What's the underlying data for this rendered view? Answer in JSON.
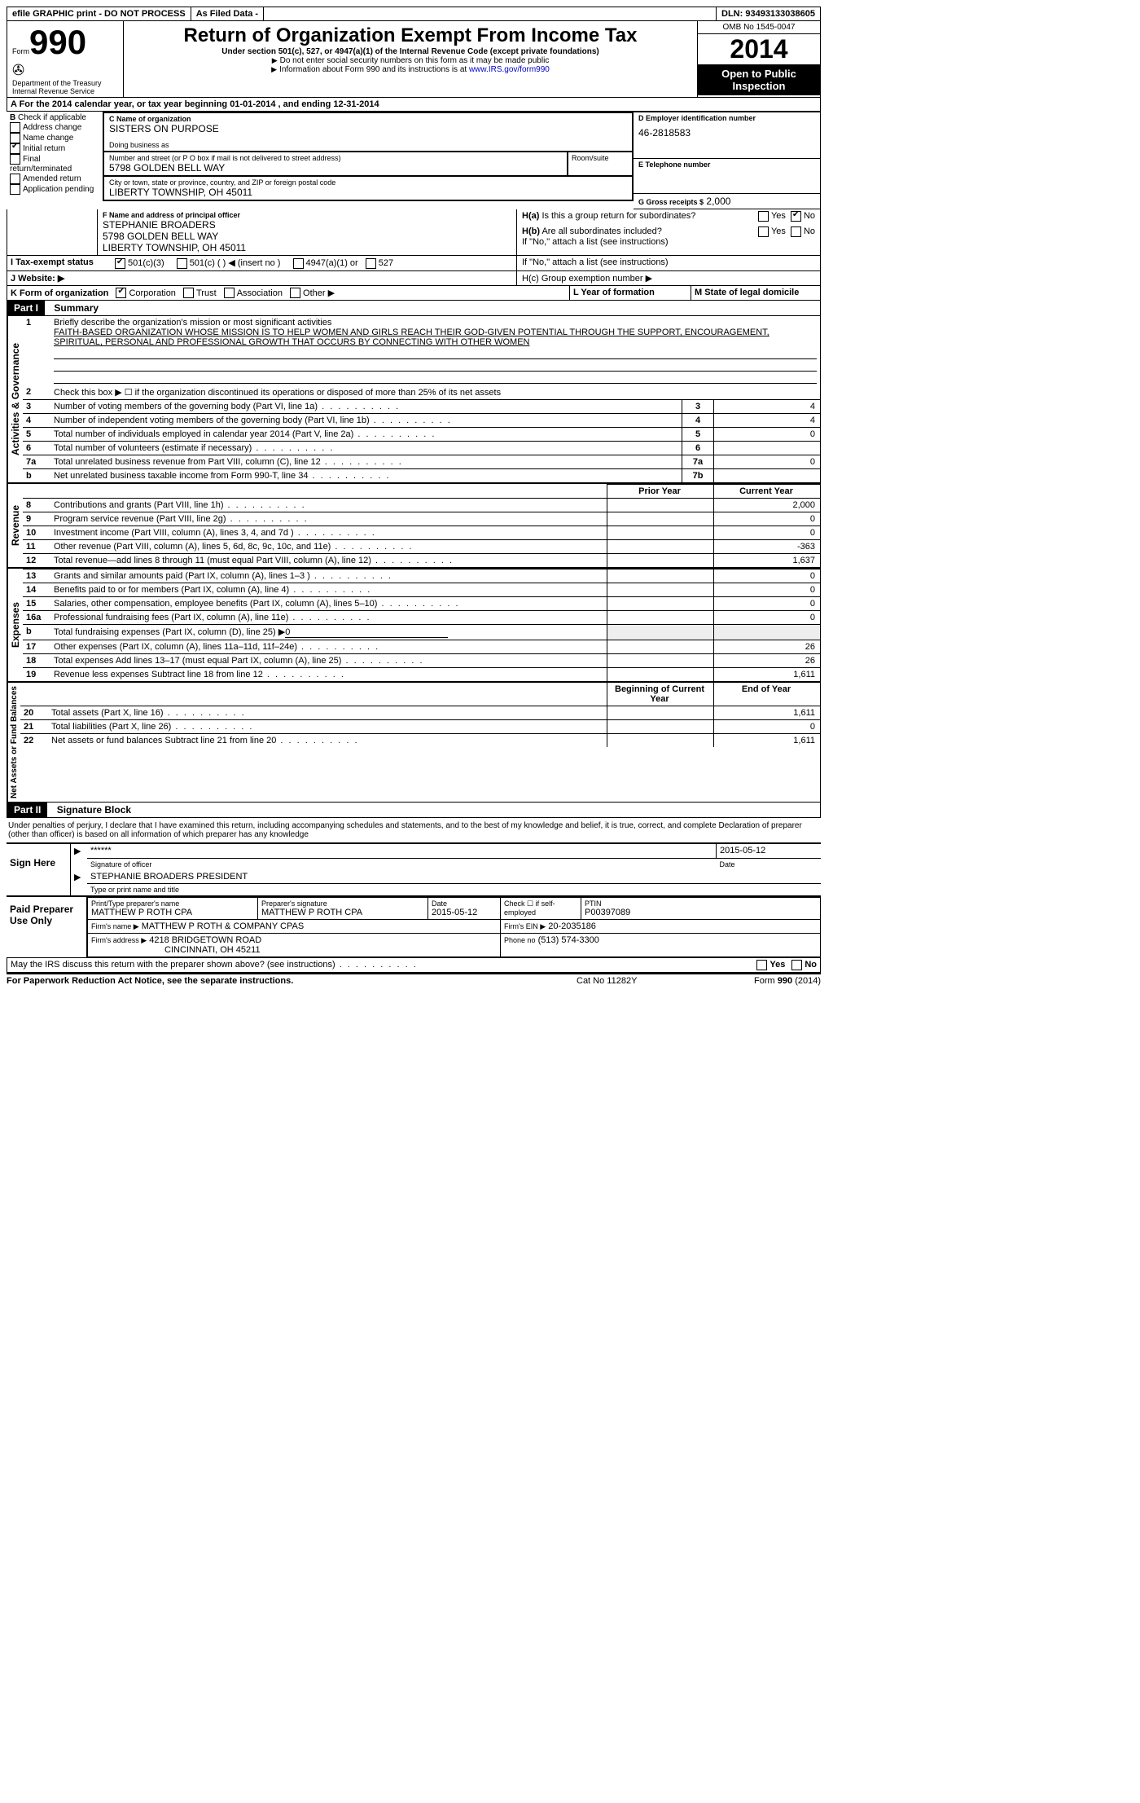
{
  "topbar": {
    "efile": "efile GRAPHIC print - DO NOT PROCESS",
    "asfiled": "As Filed Data -",
    "dln_label": "DLN:",
    "dln": "93493133038605"
  },
  "header": {
    "form_label": "Form",
    "form_number": "990",
    "dept": "Department of the Treasury",
    "irs": "Internal Revenue Service",
    "title": "Return of Organization Exempt From Income Tax",
    "subtitle": "Under section 501(c), 527, or 4947(a)(1) of the Internal Revenue Code (except private foundations)",
    "note1": "Do not enter social security numbers on this form as it may be made public",
    "note2_prefix": "Information about Form 990 and its instructions is at ",
    "note2_link": "www.IRS.gov/form990",
    "omb": "OMB No 1545-0047",
    "year": "2014",
    "open": "Open to Public Inspection"
  },
  "sectionA": {
    "line": "A  For the 2014 calendar year, or tax year beginning 01-01-2014    , and ending 12-31-2014"
  },
  "sectionB": {
    "label": "B",
    "check_label": "Check if applicable",
    "addr_change": "Address change",
    "name_change": "Name change",
    "initial_return": "Initial return",
    "final": "Final return/terminated",
    "amended": "Amended return",
    "app_pending": "Application pending"
  },
  "sectionC": {
    "name_label": "C Name of organization",
    "name": "SISTERS ON PURPOSE",
    "dba_label": "Doing business as",
    "addr_label": "Number and street (or P O  box if mail is not delivered to street address)",
    "room_label": "Room/suite",
    "addr": "5798 GOLDEN BELL WAY",
    "city_label": "City or town, state or province, country, and ZIP or foreign postal code",
    "city": "LIBERTY TOWNSHIP, OH  45011"
  },
  "sectionD": {
    "label": "D Employer identification number",
    "ein": "46-2818583"
  },
  "sectionE": {
    "label": "E Telephone number"
  },
  "sectionG": {
    "label": "G Gross receipts $",
    "val": "2,000"
  },
  "sectionF": {
    "label": "F   Name and address of principal officer",
    "name": "STEPHANIE BROADERS",
    "addr1": "5798 GOLDEN BELL WAY",
    "addr2": "LIBERTY TOWNSHIP, OH  45011"
  },
  "sectionH": {
    "ha": "H(a)  Is this a group return for subordinates?",
    "hb": "H(b)  Are all subordinates included?",
    "hb_note": "If \"No,\" attach a list  (see instructions)",
    "hc": "H(c)   Group exemption number ▶",
    "yes": "Yes",
    "no": "No"
  },
  "sectionI": {
    "label": "I    Tax-exempt status",
    "opt1": "501(c)(3)",
    "opt2": "501(c) (  ) ◀ (insert no )",
    "opt3": "4947(a)(1) or",
    "opt4": "527"
  },
  "sectionJ": {
    "label": "J   Website: ▶"
  },
  "sectionK": {
    "label": "K Form of organization",
    "corp": "Corporation",
    "trust": "Trust",
    "assoc": "Association",
    "other": "Other ▶"
  },
  "sectionL": {
    "label": "L Year of formation"
  },
  "sectionM": {
    "label": "M State of legal domicile"
  },
  "part1": {
    "header": "Part I",
    "title": "Summary",
    "line1_label": "1",
    "line1_text": "Briefly describe the organization's mission or most significant activities",
    "line1_body": "FAITH-BASED ORGANIZATION WHOSE MISSION IS TO HELP WOMEN AND GIRLS REACH THEIR GOD-GIVEN POTENTIAL THROUGH THE SUPPORT, ENCOURAGEMENT, SPIRITUAL, PERSONAL AND PROFESSIONAL GROWTH THAT OCCURS BY CONNECTING WITH OTHER WOMEN",
    "line2": "Check this box ▶ ☐ if the organization discontinued its operations or disposed of more than 25% of its net assets",
    "rows_ag": [
      {
        "n": "3",
        "t": "Number of voting members of the governing body (Part VI, line 1a)",
        "k": "3",
        "v": "4"
      },
      {
        "n": "4",
        "t": "Number of independent voting members of the governing body (Part VI, line 1b)",
        "k": "4",
        "v": "4"
      },
      {
        "n": "5",
        "t": "Total number of individuals employed in calendar year 2014 (Part V, line 2a)",
        "k": "5",
        "v": "0"
      },
      {
        "n": "6",
        "t": "Total number of volunteers (estimate if necessary)",
        "k": "6",
        "v": ""
      },
      {
        "n": "7a",
        "t": "Total unrelated business revenue from Part VIII, column (C), line 12",
        "k": "7a",
        "v": "0"
      },
      {
        "n": "b",
        "t": "Net unrelated business taxable income from Form 990-T, line 34",
        "k": "7b",
        "v": ""
      }
    ],
    "prior": "Prior Year",
    "current": "Current Year",
    "revenue_rows": [
      {
        "n": "8",
        "t": "Contributions and grants (Part VIII, line 1h)",
        "p": "",
        "c": "2,000"
      },
      {
        "n": "9",
        "t": "Program service revenue (Part VIII, line 2g)",
        "p": "",
        "c": "0"
      },
      {
        "n": "10",
        "t": "Investment income (Part VIII, column (A), lines 3, 4, and 7d )",
        "p": "",
        "c": "0"
      },
      {
        "n": "11",
        "t": "Other revenue (Part VIII, column (A), lines 5, 6d, 8c, 9c, 10c, and 11e)",
        "p": "",
        "c": "-363"
      },
      {
        "n": "12",
        "t": "Total revenue—add lines 8 through 11 (must equal Part VIII, column (A), line 12)",
        "p": "",
        "c": "1,637"
      }
    ],
    "expense_rows": [
      {
        "n": "13",
        "t": "Grants and similar amounts paid (Part IX, column (A), lines 1–3 )",
        "p": "",
        "c": "0"
      },
      {
        "n": "14",
        "t": "Benefits paid to or for members (Part IX, column (A), line 4)",
        "p": "",
        "c": "0"
      },
      {
        "n": "15",
        "t": "Salaries, other compensation, employee benefits (Part IX, column (A), lines 5–10)",
        "p": "",
        "c": "0"
      },
      {
        "n": "16a",
        "t": "Professional fundraising fees (Part IX, column (A), line 11e)",
        "p": "",
        "c": "0"
      }
    ],
    "line_b": {
      "n": "b",
      "t": "Total fundraising expenses (Part IX, column (D), line 25) ▶",
      "u": "0"
    },
    "expense_rows2": [
      {
        "n": "17",
        "t": "Other expenses (Part IX, column (A), lines 11a–11d, 11f–24e)",
        "p": "",
        "c": "26"
      },
      {
        "n": "18",
        "t": "Total expenses  Add lines 13–17 (must equal Part IX, column (A), line 25)",
        "p": "",
        "c": "26"
      },
      {
        "n": "19",
        "t": "Revenue less expenses  Subtract line 18 from line 12",
        "p": "",
        "c": "1,611"
      }
    ],
    "begin": "Beginning of Current Year",
    "end": "End of Year",
    "net_rows": [
      {
        "n": "20",
        "t": "Total assets (Part X, line 16)",
        "p": "",
        "c": "1,611"
      },
      {
        "n": "21",
        "t": "Total liabilities (Part X, line 26)",
        "p": "",
        "c": "0"
      },
      {
        "n": "22",
        "t": "Net assets or fund balances  Subtract line 21 from line 20",
        "p": "",
        "c": "1,611"
      }
    ],
    "side_ag": "Activities & Governance",
    "side_rev": "Revenue",
    "side_exp": "Expenses",
    "side_net": "Net Assets or Fund Balances"
  },
  "part2": {
    "header": "Part II",
    "title": "Signature Block",
    "perjury": "Under penalties of perjury, I declare that I have examined this return, including accompanying schedules and statements, and to the best of my knowledge and belief, it is true, correct, and complete  Declaration of preparer (other than officer) is based on all information of which preparer has any knowledge",
    "sign_here": "Sign Here",
    "sig_stars": "******",
    "sig_date": "2015-05-12",
    "sig_label": "Signature of officer",
    "date_label": "Date",
    "officer_name": "STEPHANIE BROADERS PRESIDENT",
    "officer_label": "Type or print name and title",
    "paid": "Paid Preparer Use Only",
    "prep_name_label": "Print/Type preparer's name",
    "prep_name": "MATTHEW P ROTH CPA",
    "prep_sig_label": "Preparer's signature",
    "prep_sig": "MATTHEW P ROTH CPA",
    "prep_date_label": "Date",
    "prep_date": "2015-05-12",
    "check_self": "Check ☐ if self-employed",
    "ptin_label": "PTIN",
    "ptin": "P00397089",
    "firm_name_label": "Firm's name    ▶",
    "firm_name": "MATTHEW P ROTH & COMPANY CPAS",
    "firm_ein_label": "Firm's EIN ▶",
    "firm_ein": "20-2035186",
    "firm_addr_label": "Firm's address ▶",
    "firm_addr1": "4218 BRIDGETOWN ROAD",
    "firm_addr2": "CINCINNATI, OH  45211",
    "phone_label": "Phone no",
    "phone": "(513) 574-3300",
    "discuss": "May the IRS discuss this return with the preparer shown above? (see instructions)",
    "yes": "Yes",
    "no": "No"
  },
  "footer": {
    "paperwork": "For Paperwork Reduction Act Notice, see the separate instructions.",
    "cat": "Cat No  11282Y",
    "form": "Form 990 (2014)"
  }
}
